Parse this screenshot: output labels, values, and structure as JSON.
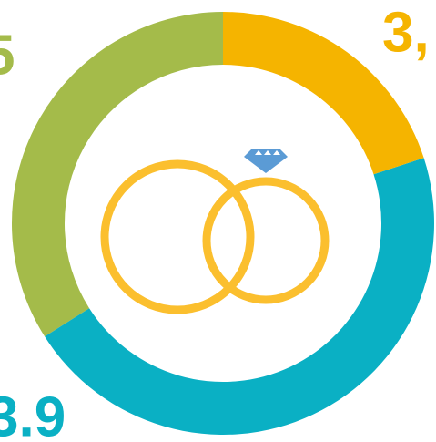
{
  "chart_data": {
    "type": "donut",
    "labels": [
      "3,",
      "3.9",
      "5"
    ],
    "values": [
      20,
      46,
      34
    ],
    "colors": [
      "#f5b400",
      "#0ab0c4",
      "#a4bb4a"
    ]
  }
}
